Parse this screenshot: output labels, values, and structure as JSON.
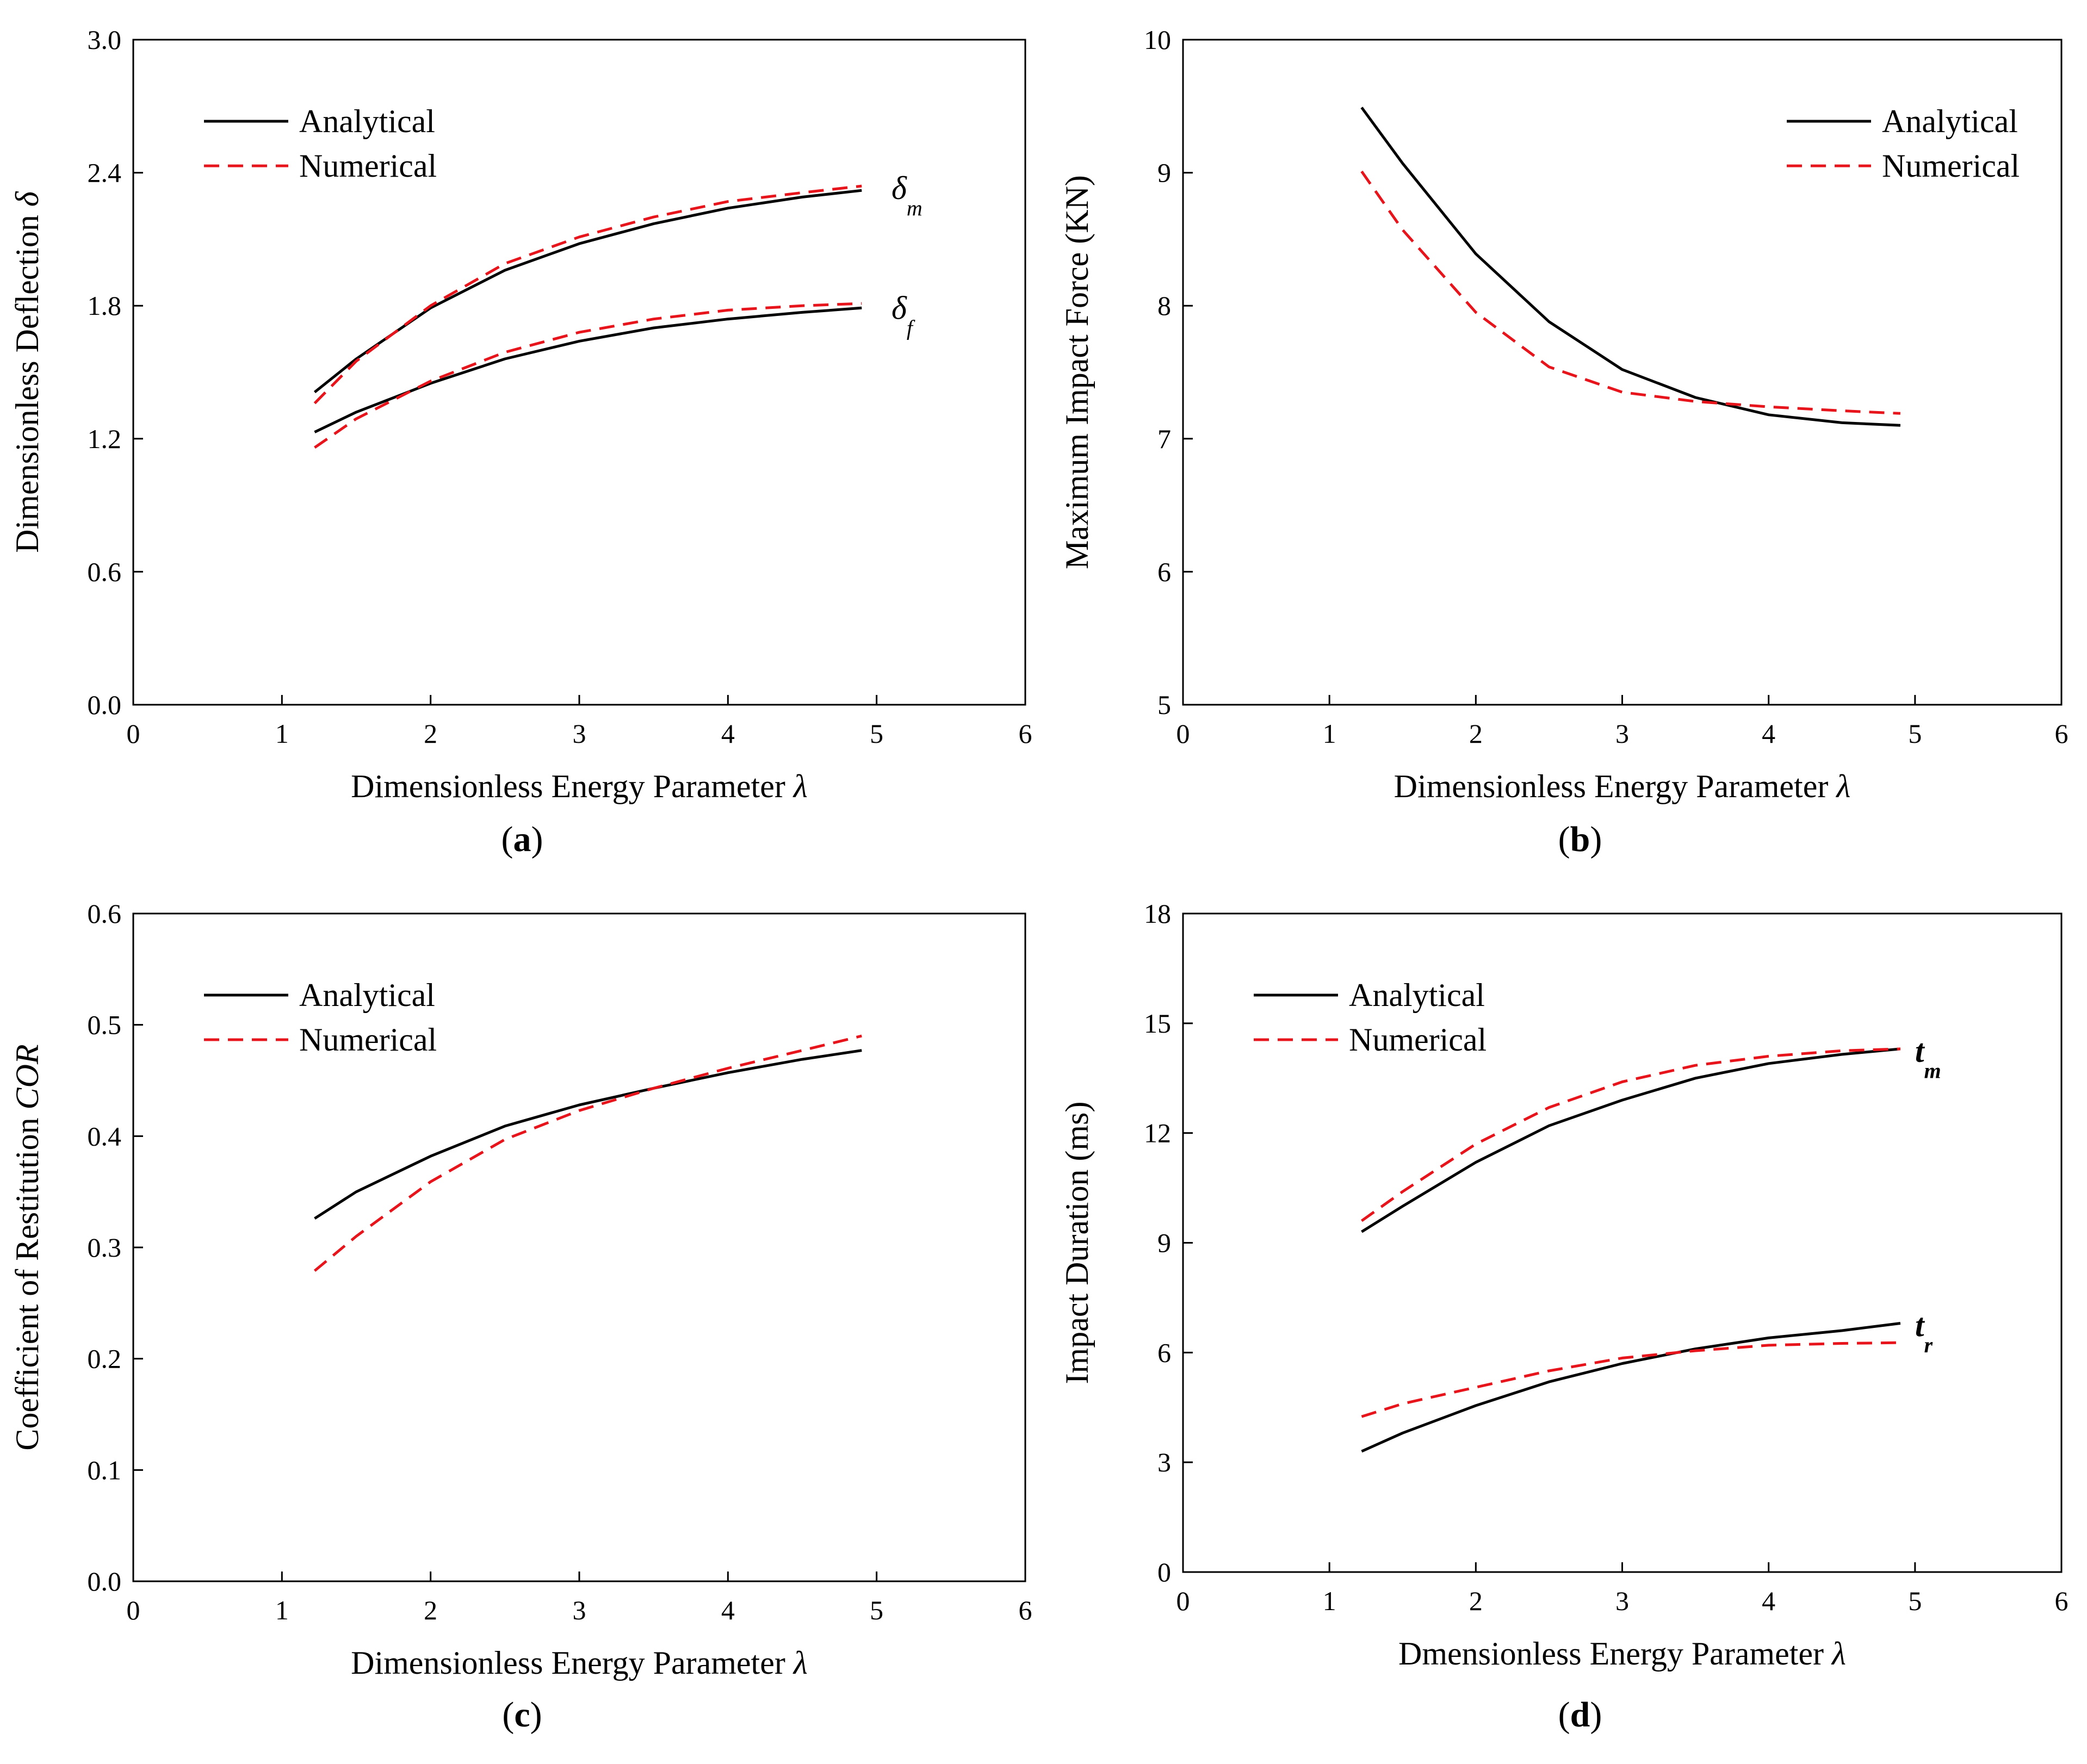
{
  "colors": {
    "analytical": "#000000",
    "numerical": "#e8141b",
    "axis": "#000000"
  },
  "chart_data": [
    {
      "type": "line",
      "panel": "a",
      "caption_letter": "a",
      "xlabel": "Dimensionless Energy Parameter",
      "xlabel_symbol": "λ",
      "ylabel": "Dimensionless Deflection",
      "ylabel_symbol": "δ",
      "xlim": [
        0,
        6
      ],
      "ylim": [
        0,
        3
      ],
      "xticks": [
        "0",
        "1",
        "2",
        "3",
        "4",
        "5",
        "6"
      ],
      "yticks": [
        "0.0",
        "0.6",
        "1.2",
        "1.8",
        "2.4",
        "3.0"
      ],
      "legend": {
        "position": "top-left",
        "entries": [
          "Analytical",
          "Numerical"
        ]
      },
      "annotations": [
        {
          "base": "δ",
          "subscript": "m",
          "x": 5.1,
          "y": 2.33
        },
        {
          "base": "δ",
          "subscript": "f",
          "x": 5.1,
          "y": 1.79
        }
      ],
      "series": [
        {
          "name": "Analytical",
          "group": "δm",
          "style": "solid",
          "x": [
            1.22,
            1.5,
            2.0,
            2.5,
            3.0,
            3.5,
            4.0,
            4.5,
            4.9
          ],
          "y": [
            1.41,
            1.56,
            1.79,
            1.96,
            2.08,
            2.17,
            2.24,
            2.29,
            2.32
          ]
        },
        {
          "name": "Numerical",
          "group": "δm",
          "style": "dashed",
          "x": [
            1.22,
            1.5,
            2.0,
            2.5,
            3.0,
            3.5,
            4.0,
            4.5,
            4.9
          ],
          "y": [
            1.36,
            1.55,
            1.8,
            1.99,
            2.11,
            2.2,
            2.27,
            2.31,
            2.34
          ]
        },
        {
          "name": "Analytical",
          "group": "δf",
          "style": "solid",
          "x": [
            1.22,
            1.5,
            2.0,
            2.5,
            3.0,
            3.5,
            4.0,
            4.5,
            4.9
          ],
          "y": [
            1.23,
            1.32,
            1.45,
            1.56,
            1.64,
            1.7,
            1.74,
            1.77,
            1.79
          ]
        },
        {
          "name": "Numerical",
          "group": "δf",
          "style": "dashed",
          "x": [
            1.22,
            1.5,
            2.0,
            2.5,
            3.0,
            3.5,
            4.0,
            4.5,
            4.9
          ],
          "y": [
            1.16,
            1.29,
            1.46,
            1.59,
            1.68,
            1.74,
            1.78,
            1.8,
            1.81
          ]
        }
      ]
    },
    {
      "type": "line",
      "panel": "b",
      "caption_letter": "b",
      "xlabel": "Dimensionless Energy Parameter",
      "xlabel_symbol": "λ",
      "ylabel": "Maximum Impact Force (KN)",
      "ylabel_symbol": "",
      "xlim": [
        0,
        6
      ],
      "ylim": [
        5,
        10
      ],
      "xticks": [
        "0",
        "1",
        "2",
        "3",
        "4",
        "5",
        "6"
      ],
      "yticks": [
        "5",
        "6",
        "7",
        "8",
        "9",
        "10"
      ],
      "legend": {
        "position": "top-right",
        "entries": [
          "Analytical",
          "Numerical"
        ]
      },
      "annotations": [],
      "series": [
        {
          "name": "Analytical",
          "style": "solid",
          "x": [
            1.22,
            1.5,
            2.0,
            2.5,
            3.0,
            3.5,
            4.0,
            4.5,
            4.9
          ],
          "y": [
            9.49,
            9.07,
            8.39,
            7.88,
            7.52,
            7.31,
            7.18,
            7.12,
            7.1
          ]
        },
        {
          "name": "Numerical",
          "style": "dashed",
          "x": [
            1.22,
            1.5,
            2.0,
            2.5,
            3.0,
            3.5,
            4.0,
            4.5,
            4.9
          ],
          "y": [
            9.01,
            8.57,
            7.95,
            7.54,
            7.35,
            7.28,
            7.24,
            7.21,
            7.19
          ]
        }
      ]
    },
    {
      "type": "line",
      "panel": "c",
      "caption_letter": "c",
      "xlabel": "Dimensionless Energy Parameter",
      "xlabel_symbol": "λ",
      "ylabel": "Coefficient of Restitution",
      "ylabel_symbol": "COR",
      "xlim": [
        0,
        6
      ],
      "ylim": [
        0,
        0.6
      ],
      "xticks": [
        "0",
        "1",
        "2",
        "3",
        "4",
        "5",
        "6"
      ],
      "yticks": [
        "0.0",
        "0.1",
        "0.2",
        "0.3",
        "0.4",
        "0.5",
        "0.6"
      ],
      "legend": {
        "position": "top-left",
        "entries": [
          "Analytical",
          "Numerical"
        ]
      },
      "annotations": [],
      "series": [
        {
          "name": "Analytical",
          "style": "solid",
          "x": [
            1.22,
            1.5,
            2.0,
            2.5,
            3.0,
            3.5,
            4.0,
            4.5,
            4.9
          ],
          "y": [
            0.326,
            0.35,
            0.382,
            0.409,
            0.428,
            0.443,
            0.457,
            0.469,
            0.477
          ]
        },
        {
          "name": "Numerical",
          "style": "dashed",
          "x": [
            1.22,
            1.5,
            2.0,
            2.5,
            3.0,
            3.5,
            4.0,
            4.5,
            4.9
          ],
          "y": [
            0.279,
            0.31,
            0.359,
            0.397,
            0.423,
            0.443,
            0.461,
            0.477,
            0.49
          ]
        }
      ]
    },
    {
      "type": "line",
      "panel": "d",
      "caption_letter": "d",
      "xlabel": "Dmensionless Energy Parameter",
      "xlabel_symbol": "λ",
      "ylabel": "Impact Duration (ms)",
      "ylabel_symbol": "",
      "xlim": [
        0,
        6
      ],
      "ylim": [
        0,
        18
      ],
      "xticks": [
        "0",
        "1",
        "2",
        "3",
        "4",
        "5",
        "6"
      ],
      "yticks": [
        "0",
        "3",
        "6",
        "9",
        "12",
        "15",
        "18"
      ],
      "legend": {
        "position": "top-left",
        "entries": [
          "Analytical",
          "Numerical"
        ]
      },
      "annotations": [
        {
          "base": "t",
          "subscript": "m",
          "x": 5.0,
          "y": 14.25,
          "bold": true
        },
        {
          "base": "t",
          "subscript": "r",
          "x": 5.0,
          "y": 6.75,
          "bold": true
        }
      ],
      "series": [
        {
          "name": "Analytical",
          "group": "tm",
          "style": "solid",
          "x": [
            1.22,
            1.5,
            2.0,
            2.5,
            3.0,
            3.5,
            4.0,
            4.5,
            4.9
          ],
          "y": [
            9.3,
            10.0,
            11.2,
            12.2,
            12.9,
            13.5,
            13.9,
            14.15,
            14.3
          ]
        },
        {
          "name": "Numerical",
          "group": "tm",
          "style": "dashed",
          "x": [
            1.22,
            1.5,
            2.0,
            2.5,
            3.0,
            3.5,
            4.0,
            4.5,
            4.9
          ],
          "y": [
            9.6,
            10.4,
            11.7,
            12.7,
            13.4,
            13.85,
            14.1,
            14.25,
            14.3
          ]
        },
        {
          "name": "Analytical",
          "group": "tr",
          "style": "solid",
          "x": [
            1.22,
            1.5,
            2.0,
            2.5,
            3.0,
            3.5,
            4.0,
            4.5,
            4.9
          ],
          "y": [
            3.3,
            3.8,
            4.55,
            5.2,
            5.7,
            6.1,
            6.4,
            6.6,
            6.8
          ]
        },
        {
          "name": "Numerical",
          "group": "tr",
          "style": "dashed",
          "x": [
            1.22,
            1.5,
            2.0,
            2.5,
            3.0,
            3.5,
            4.0,
            4.5,
            4.9
          ],
          "y": [
            4.25,
            4.6,
            5.05,
            5.5,
            5.85,
            6.05,
            6.2,
            6.25,
            6.27
          ]
        }
      ]
    }
  ]
}
